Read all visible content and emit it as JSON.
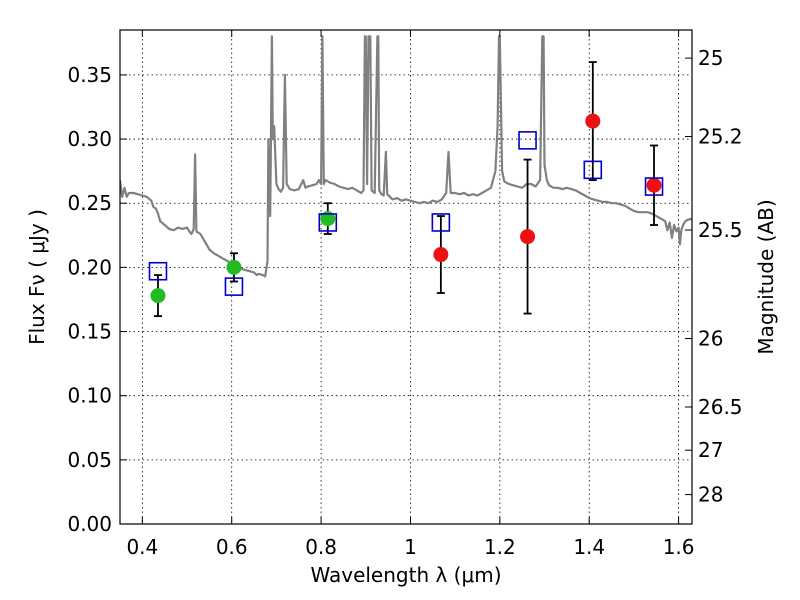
{
  "chart_data": {
    "type": "scatter",
    "xlabel": "Wavelength  λ (μm)",
    "ylabel": "Flux  Fν  ( μJy )",
    "ylabel_right": "Magnitude (AB)",
    "xlim": [
      0.35,
      1.63
    ],
    "ylim": [
      0.0,
      0.385
    ],
    "grid": true,
    "x_ticks": [
      {
        "value": 0.4,
        "label": "0.4"
      },
      {
        "value": 0.6,
        "label": "0.6"
      },
      {
        "value": 0.8,
        "label": "0.8"
      },
      {
        "value": 1.0,
        "label": "1"
      },
      {
        "value": 1.2,
        "label": "1.2"
      },
      {
        "value": 1.4,
        "label": "1.4"
      },
      {
        "value": 1.6,
        "label": "1.6"
      }
    ],
    "y_ticks": [
      {
        "value": 0.0,
        "label": "0.00"
      },
      {
        "value": 0.05,
        "label": "0.05"
      },
      {
        "value": 0.1,
        "label": "0.10"
      },
      {
        "value": 0.15,
        "label": "0.15"
      },
      {
        "value": 0.2,
        "label": "0.20"
      },
      {
        "value": 0.25,
        "label": "0.25"
      },
      {
        "value": 0.3,
        "label": "0.30"
      },
      {
        "value": 0.35,
        "label": "0.35"
      }
    ],
    "right_ticks": [
      {
        "value": 25,
        "label": "25"
      },
      {
        "value": 25.2,
        "label": "25.2"
      },
      {
        "value": 25.5,
        "label": "25.5"
      },
      {
        "value": 26,
        "label": "26"
      },
      {
        "value": 26.5,
        "label": "26.5"
      },
      {
        "value": 27,
        "label": "27"
      },
      {
        "value": 28,
        "label": "28"
      }
    ],
    "colors": {
      "model": "#808080",
      "green": "#22bb22",
      "red": "#ee1111",
      "square": "#0000cc",
      "errorbar": "#000000"
    },
    "series": [
      {
        "name": "model-spectrum",
        "kind": "line",
        "points": [
          [
            0.35,
            0.268
          ],
          [
            0.355,
            0.255
          ],
          [
            0.36,
            0.262
          ],
          [
            0.365,
            0.255
          ],
          [
            0.37,
            0.258
          ],
          [
            0.38,
            0.258
          ],
          [
            0.39,
            0.257
          ],
          [
            0.4,
            0.256
          ],
          [
            0.41,
            0.255
          ],
          [
            0.42,
            0.252
          ],
          [
            0.425,
            0.247
          ],
          [
            0.43,
            0.246
          ],
          [
            0.435,
            0.242
          ],
          [
            0.44,
            0.236
          ],
          [
            0.45,
            0.233
          ],
          [
            0.46,
            0.23
          ],
          [
            0.47,
            0.229
          ],
          [
            0.48,
            0.231
          ],
          [
            0.49,
            0.23
          ],
          [
            0.5,
            0.231
          ],
          [
            0.505,
            0.228
          ],
          [
            0.51,
            0.226
          ],
          [
            0.515,
            0.23
          ],
          [
            0.518,
            0.288
          ],
          [
            0.521,
            0.228
          ],
          [
            0.53,
            0.226
          ],
          [
            0.54,
            0.22
          ],
          [
            0.55,
            0.214
          ],
          [
            0.56,
            0.211
          ],
          [
            0.57,
            0.209
          ],
          [
            0.58,
            0.207
          ],
          [
            0.59,
            0.205
          ],
          [
            0.6,
            0.203
          ],
          [
            0.61,
            0.201
          ],
          [
            0.62,
            0.199
          ],
          [
            0.63,
            0.198
          ],
          [
            0.64,
            0.197
          ],
          [
            0.65,
            0.196
          ],
          [
            0.656,
            0.194
          ],
          [
            0.66,
            0.195
          ],
          [
            0.67,
            0.194
          ],
          [
            0.675,
            0.193
          ],
          [
            0.68,
            0.205
          ],
          [
            0.682,
            0.3
          ],
          [
            0.686,
            0.24
          ],
          [
            0.69,
            0.38
          ],
          [
            0.692,
            0.3
          ],
          [
            0.695,
            0.31
          ],
          [
            0.7,
            0.265
          ],
          [
            0.705,
            0.261
          ],
          [
            0.71,
            0.259
          ],
          [
            0.715,
            0.262
          ],
          [
            0.719,
            0.35
          ],
          [
            0.723,
            0.265
          ],
          [
            0.73,
            0.261
          ],
          [
            0.74,
            0.26
          ],
          [
            0.75,
            0.261
          ],
          [
            0.76,
            0.268
          ],
          [
            0.765,
            0.262
          ],
          [
            0.77,
            0.263
          ],
          [
            0.78,
            0.264
          ],
          [
            0.79,
            0.265
          ],
          [
            0.795,
            0.268
          ],
          [
            0.8,
            0.265
          ],
          [
            0.803,
            0.38
          ],
          [
            0.806,
            0.265
          ],
          [
            0.81,
            0.268
          ],
          [
            0.82,
            0.266
          ],
          [
            0.83,
            0.265
          ],
          [
            0.84,
            0.263
          ],
          [
            0.85,
            0.262
          ],
          [
            0.86,
            0.261
          ],
          [
            0.87,
            0.262
          ],
          [
            0.88,
            0.26
          ],
          [
            0.89,
            0.258
          ],
          [
            0.895,
            0.26
          ],
          [
            0.898,
            0.38
          ],
          [
            0.9,
            0.38
          ],
          [
            0.903,
            0.265
          ],
          [
            0.906,
            0.38
          ],
          [
            0.91,
            0.38
          ],
          [
            0.913,
            0.26
          ],
          [
            0.92,
            0.258
          ],
          [
            0.926,
            0.38
          ],
          [
            0.928,
            0.38
          ],
          [
            0.93,
            0.26
          ],
          [
            0.935,
            0.257
          ],
          [
            0.94,
            0.256
          ],
          [
            0.945,
            0.29
          ],
          [
            0.948,
            0.257
          ],
          [
            0.96,
            0.253
          ],
          [
            0.97,
            0.254
          ],
          [
            0.98,
            0.252
          ],
          [
            0.99,
            0.253
          ],
          [
            1.0,
            0.252
          ],
          [
            1.01,
            0.251
          ],
          [
            1.02,
            0.25
          ],
          [
            1.03,
            0.251
          ],
          [
            1.04,
            0.25
          ],
          [
            1.05,
            0.252
          ],
          [
            1.06,
            0.251
          ],
          [
            1.07,
            0.253
          ],
          [
            1.08,
            0.258
          ],
          [
            1.085,
            0.29
          ],
          [
            1.09,
            0.258
          ],
          [
            1.1,
            0.258
          ],
          [
            1.11,
            0.257
          ],
          [
            1.12,
            0.258
          ],
          [
            1.13,
            0.256
          ],
          [
            1.14,
            0.257
          ],
          [
            1.15,
            0.256
          ],
          [
            1.16,
            0.258
          ],
          [
            1.17,
            0.26
          ],
          [
            1.18,
            0.262
          ],
          [
            1.19,
            0.275
          ],
          [
            1.195,
            0.31
          ],
          [
            1.198,
            0.38
          ],
          [
            1.2,
            0.38
          ],
          [
            1.205,
            0.275
          ],
          [
            1.21,
            0.267
          ],
          [
            1.22,
            0.265
          ],
          [
            1.23,
            0.264
          ],
          [
            1.24,
            0.263
          ],
          [
            1.25,
            0.262
          ],
          [
            1.26,
            0.265
          ],
          [
            1.27,
            0.265
          ],
          [
            1.28,
            0.263
          ],
          [
            1.29,
            0.268
          ],
          [
            1.295,
            0.38
          ],
          [
            1.298,
            0.38
          ],
          [
            1.3,
            0.28
          ],
          [
            1.305,
            0.268
          ],
          [
            1.31,
            0.264
          ],
          [
            1.32,
            0.262
          ],
          [
            1.33,
            0.262
          ],
          [
            1.34,
            0.261
          ],
          [
            1.35,
            0.262
          ],
          [
            1.36,
            0.261
          ],
          [
            1.37,
            0.26
          ],
          [
            1.38,
            0.258
          ],
          [
            1.39,
            0.256
          ],
          [
            1.4,
            0.254
          ],
          [
            1.41,
            0.253
          ],
          [
            1.42,
            0.252
          ],
          [
            1.43,
            0.251
          ],
          [
            1.44,
            0.251
          ],
          [
            1.45,
            0.25
          ],
          [
            1.46,
            0.25
          ],
          [
            1.47,
            0.249
          ],
          [
            1.48,
            0.248
          ],
          [
            1.49,
            0.246
          ],
          [
            1.5,
            0.244
          ],
          [
            1.51,
            0.243
          ],
          [
            1.52,
            0.243
          ],
          [
            1.53,
            0.243
          ],
          [
            1.54,
            0.242
          ],
          [
            1.55,
            0.24
          ],
          [
            1.56,
            0.238
          ],
          [
            1.57,
            0.236
          ],
          [
            1.575,
            0.229
          ],
          [
            1.58,
            0.235
          ],
          [
            1.585,
            0.223
          ],
          [
            1.59,
            0.233
          ],
          [
            1.595,
            0.228
          ],
          [
            1.6,
            0.231
          ],
          [
            1.603,
            0.218
          ],
          [
            1.606,
            0.229
          ],
          [
            1.61,
            0.233
          ],
          [
            1.615,
            0.236
          ],
          [
            1.62,
            0.237
          ],
          [
            1.63,
            0.238
          ]
        ]
      },
      {
        "name": "observed-green",
        "kind": "point",
        "points": [
          {
            "x": 0.435,
            "y": 0.178,
            "err_lo": 0.016,
            "err_hi": 0.016
          },
          {
            "x": 0.605,
            "y": 0.2,
            "err_lo": 0.011,
            "err_hi": 0.011
          },
          {
            "x": 0.815,
            "y": 0.238,
            "err_lo": 0.012,
            "err_hi": 0.012
          }
        ]
      },
      {
        "name": "observed-red",
        "kind": "point",
        "points": [
          {
            "x": 1.068,
            "y": 0.21,
            "err_lo": 0.03,
            "err_hi": 0.03
          },
          {
            "x": 1.262,
            "y": 0.224,
            "err_lo": 0.06,
            "err_hi": 0.06
          },
          {
            "x": 1.408,
            "y": 0.314,
            "err_lo": 0.046,
            "err_hi": 0.046
          },
          {
            "x": 1.545,
            "y": 0.264,
            "err_lo": 0.031,
            "err_hi": 0.031
          }
        ]
      },
      {
        "name": "model-photometry",
        "kind": "square",
        "points": [
          {
            "x": 0.435,
            "y": 0.197
          },
          {
            "x": 0.605,
            "y": 0.185
          },
          {
            "x": 0.815,
            "y": 0.235
          },
          {
            "x": 1.068,
            "y": 0.235
          },
          {
            "x": 1.262,
            "y": 0.299
          },
          {
            "x": 1.408,
            "y": 0.276
          },
          {
            "x": 1.545,
            "y": 0.263
          }
        ]
      }
    ]
  }
}
